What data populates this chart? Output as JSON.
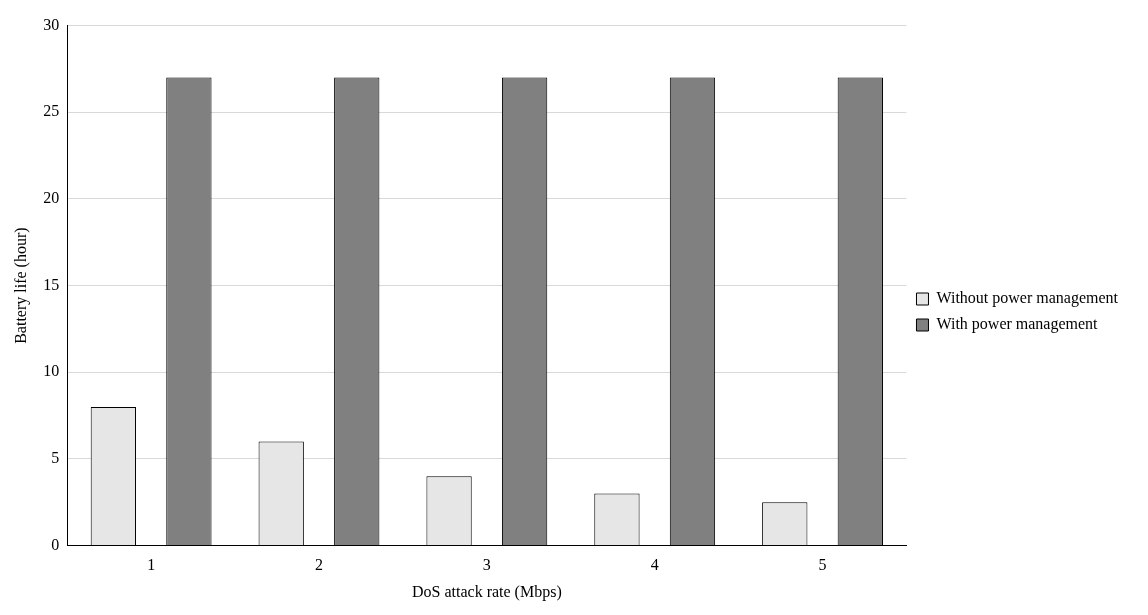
{
  "chart_data": {
    "type": "bar",
    "xlabel": "DoS attack rate (Mbps)",
    "ylabel": "Battery life (hour)",
    "categories": [
      "1",
      "2",
      "3",
      "4",
      "5"
    ],
    "series": [
      {
        "name": "Without power management",
        "color": "#e6e6e6",
        "values": [
          8,
          6,
          4,
          3,
          2.5
        ]
      },
      {
        "name": "With power management",
        "color": "#808080",
        "values": [
          27,
          27,
          27,
          27,
          27
        ]
      }
    ],
    "ylim": [
      0,
      30
    ],
    "yticks": [
      0,
      5,
      10,
      15,
      20,
      25,
      30
    ],
    "grid": "y",
    "legend": "right"
  }
}
